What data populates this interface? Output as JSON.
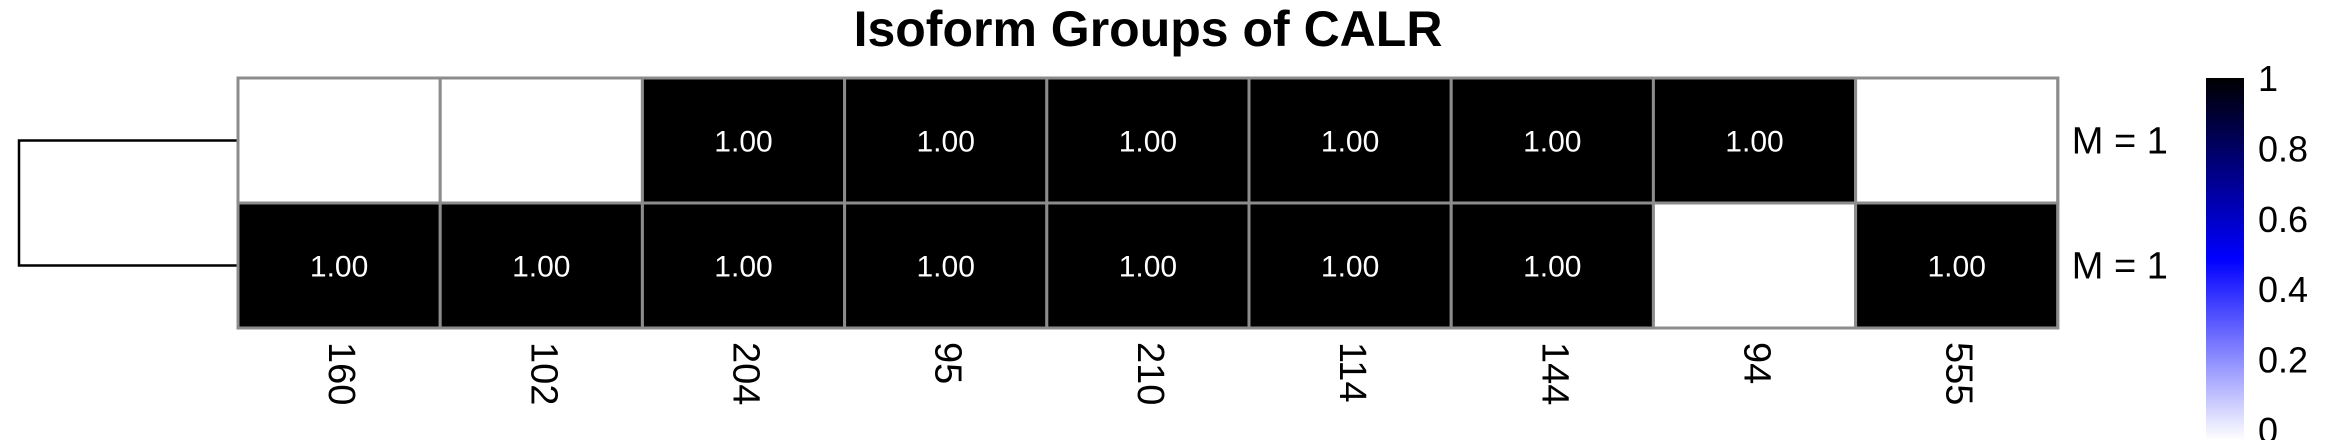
{
  "chart_data": {
    "type": "heatmap",
    "title": "Isoform Groups of CALR",
    "columns": [
      "160",
      "102",
      "204",
      "95",
      "210",
      "114",
      "144",
      "94",
      "555"
    ],
    "rows": [
      {
        "label": "M = 1",
        "values": [
          0,
          0,
          1,
          1,
          1,
          1,
          1,
          1,
          0
        ]
      },
      {
        "label": "M = 1",
        "values": [
          1,
          1,
          1,
          1,
          1,
          1,
          1,
          0,
          1
        ]
      }
    ],
    "cell_label_text": "1.00",
    "legend": {
      "ticks": [
        "1",
        "0.8",
        "0.6",
        "0.4",
        "0.2",
        "0"
      ],
      "range": [
        0,
        1
      ],
      "colors": {
        "low": "#ffffff",
        "mid": "#0000ff",
        "high": "#000000"
      }
    },
    "dendrogram": "rows",
    "grid_color": "#8c8c8c"
  }
}
